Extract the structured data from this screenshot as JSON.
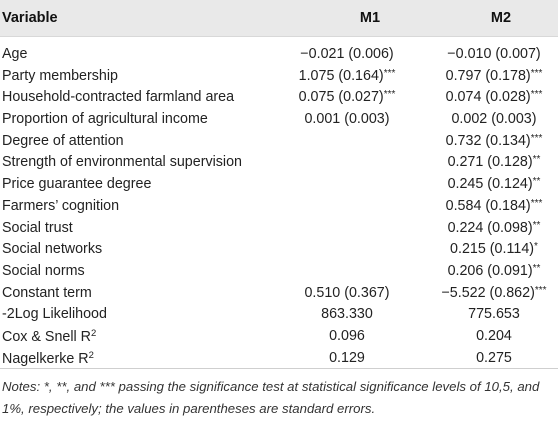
{
  "header": {
    "variable": "Variable",
    "m1": "M1",
    "m2": "M2"
  },
  "rows": [
    {
      "variable": "Age",
      "m1": "−0.021 (0.006)",
      "m1_stars": "",
      "m2": "−0.010 (0.007)",
      "m2_stars": ""
    },
    {
      "variable": "Party membership",
      "m1": "1.075 (0.164)",
      "m1_stars": "***",
      "m2": "0.797 (0.178)",
      "m2_stars": "***"
    },
    {
      "variable": "Household-contracted farmland area",
      "m1": "0.075 (0.027)",
      "m1_stars": "***",
      "m2": "0.074 (0.028)",
      "m2_stars": "***"
    },
    {
      "variable": "Proportion of agricultural income",
      "m1": "0.001 (0.003)",
      "m1_stars": "",
      "m2": "0.002 (0.003)",
      "m2_stars": ""
    },
    {
      "variable": "Degree of attention",
      "m1": "",
      "m1_stars": "",
      "m2": "0.732 (0.134)",
      "m2_stars": "***"
    },
    {
      "variable": "Strength of environmental supervision",
      "m1": "",
      "m1_stars": "",
      "m2": "0.271 (0.128)",
      "m2_stars": "**"
    },
    {
      "variable": "Price guarantee degree",
      "m1": "",
      "m1_stars": "",
      "m2": "0.245 (0.124)",
      "m2_stars": "**"
    },
    {
      "variable": "Farmers’ cognition",
      "m1": "",
      "m1_stars": "",
      "m2": "0.584 (0.184)",
      "m2_stars": "***"
    },
    {
      "variable": "Social trust",
      "m1": "",
      "m1_stars": "",
      "m2": "0.224 (0.098)",
      "m2_stars": "**"
    },
    {
      "variable": "Social networks",
      "m1": "",
      "m1_stars": "",
      "m2": "0.215 (0.114)",
      "m2_stars": "*"
    },
    {
      "variable": "Social norms",
      "m1": "",
      "m1_stars": "",
      "m2": "0.206 (0.091)",
      "m2_stars": "**"
    },
    {
      "variable": "Constant term",
      "m1": "0.510 (0.367)",
      "m1_stars": "",
      "m2": "−5.522 (0.862)",
      "m2_stars": "***"
    },
    {
      "variable": "-2Log Likelihood",
      "m1": "863.330",
      "m1_stars": "",
      "m2": "775.653",
      "m2_stars": ""
    },
    {
      "variable": "Cox & Snell R",
      "variable_sup": "2",
      "m1": "0.096",
      "m1_stars": "",
      "m2": "0.204",
      "m2_stars": ""
    },
    {
      "variable": "Nagelkerke R",
      "variable_sup": "2",
      "m1": "0.129",
      "m1_stars": "",
      "m2": "0.275",
      "m2_stars": ""
    }
  ],
  "notes": "Notes: *, **, and *** passing the significance test at statistical significance levels of 10,5, and 1%, respectively; the values in parentheses are standard errors."
}
